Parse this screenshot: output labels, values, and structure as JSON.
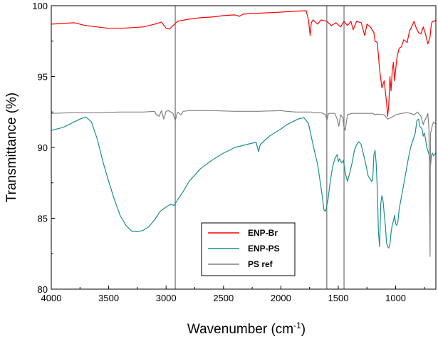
{
  "chart_data": {
    "type": "line",
    "title": "",
    "xlabel": "Wavenumber (cm",
    "xlabel_sup": "-1",
    "xlabel_close": ")",
    "ylabel": "Transmittance (%)",
    "xlim": [
      4000,
      650
    ],
    "ylim": [
      80,
      100
    ],
    "x_ticks": [
      4000,
      3500,
      3000,
      2500,
      2000,
      1500,
      1000
    ],
    "x_tick_labels": [
      "4000",
      "3500",
      "3000",
      "2500",
      "2000",
      "1500",
      "1000"
    ],
    "y_ticks": [
      80,
      85,
      90,
      95,
      100
    ],
    "y_tick_labels": [
      "80",
      "85",
      "90",
      "95",
      "100"
    ],
    "reference_lines": [
      2920,
      1600,
      1450
    ],
    "legend_position": "bottom-center",
    "series": [
      {
        "name": "ENP-Br",
        "color": "#ff0000",
        "points": [
          [
            4000,
            98.7
          ],
          [
            3900,
            98.75
          ],
          [
            3800,
            98.8
          ],
          [
            3700,
            98.6
          ],
          [
            3600,
            98.5
          ],
          [
            3500,
            98.4
          ],
          [
            3400,
            98.4
          ],
          [
            3300,
            98.45
          ],
          [
            3200,
            98.5
          ],
          [
            3100,
            98.7
          ],
          [
            3040,
            98.85
          ],
          [
            3000,
            98.4
          ],
          [
            2970,
            98.35
          ],
          [
            2940,
            98.6
          ],
          [
            2900,
            98.9
          ],
          [
            2800,
            99.05
          ],
          [
            2700,
            99.15
          ],
          [
            2600,
            99.2
          ],
          [
            2500,
            99.3
          ],
          [
            2400,
            99.35
          ],
          [
            2360,
            99.25
          ],
          [
            2330,
            99.4
          ],
          [
            2250,
            99.45
          ],
          [
            2100,
            99.5
          ],
          [
            2000,
            99.55
          ],
          [
            1900,
            99.6
          ],
          [
            1780,
            99.65
          ],
          [
            1760,
            99.0
          ],
          [
            1745,
            97.9
          ],
          [
            1735,
            98.8
          ],
          [
            1720,
            99.0
          ],
          [
            1700,
            98.85
          ],
          [
            1680,
            98.7
          ],
          [
            1650,
            99.0
          ],
          [
            1600,
            98.9
          ],
          [
            1560,
            98.6
          ],
          [
            1520,
            98.8
          ],
          [
            1480,
            98.5
          ],
          [
            1450,
            98.9
          ],
          [
            1420,
            98.6
          ],
          [
            1390,
            98.9
          ],
          [
            1370,
            98.3
          ],
          [
            1340,
            98.9
          ],
          [
            1300,
            98.8
          ],
          [
            1270,
            97.9
          ],
          [
            1250,
            98.7
          ],
          [
            1220,
            98.5
          ],
          [
            1190,
            98.1
          ],
          [
            1180,
            97.5
          ],
          [
            1160,
            97.4
          ],
          [
            1140,
            95.5
          ],
          [
            1120,
            94.2
          ],
          [
            1100,
            94.7
          ],
          [
            1080,
            93.2
          ],
          [
            1070,
            92.2
          ],
          [
            1060,
            93.0
          ],
          [
            1050,
            95.0
          ],
          [
            1040,
            94.0
          ],
          [
            1030,
            95.4
          ],
          [
            1020,
            96.0
          ],
          [
            1010,
            94.7
          ],
          [
            1000,
            95.5
          ],
          [
            990,
            96.3
          ],
          [
            970,
            97.0
          ],
          [
            950,
            97.1
          ],
          [
            930,
            97.6
          ],
          [
            900,
            97.4
          ],
          [
            880,
            98.2
          ],
          [
            860,
            98.5
          ],
          [
            840,
            98.9
          ],
          [
            820,
            98.4
          ],
          [
            800,
            98.1
          ],
          [
            780,
            98.0
          ],
          [
            760,
            98.5
          ],
          [
            740,
            98.0
          ],
          [
            720,
            97.3
          ],
          [
            700,
            97.8
          ],
          [
            690,
            98.7
          ],
          [
            680,
            98.9
          ],
          [
            660,
            98.9
          ],
          [
            650,
            99.0
          ]
        ]
      },
      {
        "name": "ENP-PS",
        "color": "#1a8f8f",
        "points": [
          [
            4000,
            91.2
          ],
          [
            3900,
            91.4
          ],
          [
            3800,
            91.8
          ],
          [
            3750,
            92.0
          ],
          [
            3700,
            92.15
          ],
          [
            3650,
            91.8
          ],
          [
            3600,
            90.6
          ],
          [
            3550,
            89.0
          ],
          [
            3500,
            87.6
          ],
          [
            3450,
            86.3
          ],
          [
            3400,
            85.2
          ],
          [
            3350,
            84.5
          ],
          [
            3300,
            84.1
          ],
          [
            3250,
            84.05
          ],
          [
            3200,
            84.15
          ],
          [
            3150,
            84.4
          ],
          [
            3100,
            84.9
          ],
          [
            3050,
            85.5
          ],
          [
            3000,
            85.8
          ],
          [
            2960,
            86.0
          ],
          [
            2930,
            85.9
          ],
          [
            2900,
            86.3
          ],
          [
            2850,
            86.9
          ],
          [
            2800,
            87.6
          ],
          [
            2700,
            88.5
          ],
          [
            2600,
            89.1
          ],
          [
            2500,
            89.6
          ],
          [
            2400,
            90.0
          ],
          [
            2300,
            90.2
          ],
          [
            2250,
            90.3
          ],
          [
            2215,
            90.35
          ],
          [
            2195,
            89.7
          ],
          [
            2180,
            90.2
          ],
          [
            2100,
            90.8
          ],
          [
            2000,
            91.3
          ],
          [
            1950,
            91.6
          ],
          [
            1900,
            91.8
          ],
          [
            1850,
            92.0
          ],
          [
            1800,
            92.1
          ],
          [
            1760,
            91.7
          ],
          [
            1720,
            90.2
          ],
          [
            1700,
            89.5
          ],
          [
            1680,
            88.8
          ],
          [
            1660,
            87.7
          ],
          [
            1640,
            86.6
          ],
          [
            1625,
            85.6
          ],
          [
            1610,
            85.5
          ],
          [
            1590,
            86.3
          ],
          [
            1570,
            87.6
          ],
          [
            1550,
            88.6
          ],
          [
            1530,
            89.2
          ],
          [
            1510,
            89.5
          ],
          [
            1500,
            89.0
          ],
          [
            1490,
            89.2
          ],
          [
            1470,
            88.9
          ],
          [
            1455,
            89.1
          ],
          [
            1440,
            88.2
          ],
          [
            1420,
            87.6
          ],
          [
            1400,
            88.2
          ],
          [
            1380,
            88.9
          ],
          [
            1360,
            89.8
          ],
          [
            1340,
            90.2
          ],
          [
            1320,
            90.4
          ],
          [
            1300,
            90.2
          ],
          [
            1280,
            89.5
          ],
          [
            1260,
            88.8
          ],
          [
            1240,
            88.0
          ],
          [
            1225,
            87.8
          ],
          [
            1210,
            87.6
          ],
          [
            1200,
            87.7
          ],
          [
            1190,
            89.5
          ],
          [
            1180,
            89.8
          ],
          [
            1170,
            88.9
          ],
          [
            1160,
            87.0
          ],
          [
            1150,
            84.0
          ],
          [
            1140,
            83.0
          ],
          [
            1130,
            86.0
          ],
          [
            1120,
            86.6
          ],
          [
            1110,
            86.2
          ],
          [
            1100,
            85.3
          ],
          [
            1090,
            84.5
          ],
          [
            1080,
            83.3
          ],
          [
            1070,
            83.0
          ],
          [
            1060,
            82.9
          ],
          [
            1050,
            83.2
          ],
          [
            1040,
            84.0
          ],
          [
            1030,
            84.5
          ],
          [
            1020,
            84.8
          ],
          [
            1010,
            85.2
          ],
          [
            1000,
            84.6
          ],
          [
            990,
            84.5
          ],
          [
            980,
            84.8
          ],
          [
            970,
            85.6
          ],
          [
            950,
            86.5
          ],
          [
            930,
            87.4
          ],
          [
            910,
            88.3
          ],
          [
            890,
            89.2
          ],
          [
            870,
            90.0
          ],
          [
            850,
            90.5
          ],
          [
            830,
            91.0
          ],
          [
            815,
            91.9
          ],
          [
            800,
            92.0
          ],
          [
            790,
            91.5
          ],
          [
            770,
            91.3
          ],
          [
            760,
            90.8
          ],
          [
            750,
            91.0
          ],
          [
            740,
            90.6
          ],
          [
            730,
            90.0
          ],
          [
            720,
            89.8
          ],
          [
            710,
            89.5
          ],
          [
            700,
            89.2
          ],
          [
            695,
            88.8
          ],
          [
            690,
            89.4
          ],
          [
            680,
            89.6
          ],
          [
            670,
            89.4
          ],
          [
            660,
            89.5
          ],
          [
            650,
            89.6
          ]
        ]
      },
      {
        "name": "PS ref",
        "color": "#808080",
        "points": [
          [
            4000,
            92.4
          ],
          [
            3800,
            92.45
          ],
          [
            3600,
            92.45
          ],
          [
            3400,
            92.5
          ],
          [
            3200,
            92.5
          ],
          [
            3100,
            92.55
          ],
          [
            3085,
            92.3
          ],
          [
            3060,
            92.2
          ],
          [
            3040,
            92.6
          ],
          [
            3020,
            92.0
          ],
          [
            3000,
            92.55
          ],
          [
            2980,
            92.6
          ],
          [
            2940,
            92.4
          ],
          [
            2920,
            91.9
          ],
          [
            2900,
            92.5
          ],
          [
            2870,
            92.3
          ],
          [
            2850,
            92.55
          ],
          [
            2800,
            92.6
          ],
          [
            2600,
            92.6
          ],
          [
            2400,
            92.55
          ],
          [
            2200,
            92.55
          ],
          [
            2000,
            92.6
          ],
          [
            1950,
            92.55
          ],
          [
            1870,
            92.5
          ],
          [
            1800,
            92.5
          ],
          [
            1740,
            92.5
          ],
          [
            1700,
            92.45
          ],
          [
            1650,
            92.45
          ],
          [
            1610,
            92.3
          ],
          [
            1600,
            91.9
          ],
          [
            1585,
            92.4
          ],
          [
            1530,
            92.4
          ],
          [
            1510,
            92.0
          ],
          [
            1495,
            91.5
          ],
          [
            1480,
            92.3
          ],
          [
            1460,
            92.1
          ],
          [
            1452,
            91.5
          ],
          [
            1440,
            91.2
          ],
          [
            1420,
            92.3
          ],
          [
            1380,
            92.4
          ],
          [
            1300,
            92.4
          ],
          [
            1200,
            92.4
          ],
          [
            1180,
            92.3
          ],
          [
            1160,
            92.35
          ],
          [
            1100,
            92.3
          ],
          [
            1070,
            92.0
          ],
          [
            1030,
            92.15
          ],
          [
            1000,
            92.3
          ],
          [
            950,
            92.4
          ],
          [
            900,
            92.45
          ],
          [
            870,
            92.4
          ],
          [
            840,
            92.3
          ],
          [
            810,
            92.5
          ],
          [
            780,
            92.2
          ],
          [
            760,
            91.6
          ],
          [
            750,
            91.9
          ],
          [
            740,
            92.0
          ],
          [
            720,
            92.4
          ],
          [
            710,
            91.3
          ],
          [
            700,
            82.3
          ],
          [
            697,
            91.0
          ],
          [
            690,
            91.2
          ],
          [
            680,
            91.6
          ],
          [
            670,
            91.8
          ],
          [
            660,
            91.7
          ],
          [
            650,
            91.7
          ]
        ]
      }
    ]
  }
}
